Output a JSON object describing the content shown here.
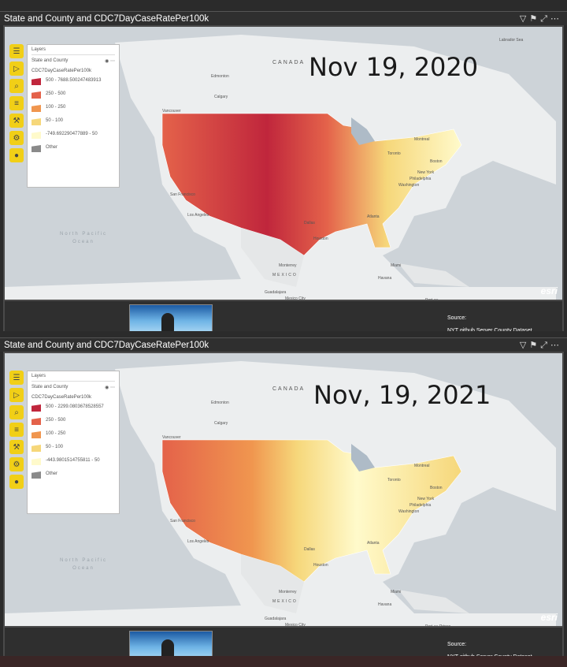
{
  "panels": [
    {
      "title": "State and County and CDC7DayCaseRatePer100k",
      "date": "Nov 19, 2020",
      "layers_header": "Layers",
      "layer_name": "State and County",
      "field_name": "CDC7DayCaseRatePer100k",
      "legend": [
        {
          "label": "500 - 7688.500247483913",
          "color": "#c0263c"
        },
        {
          "label": "250 - 500",
          "color": "#e4624a"
        },
        {
          "label": "100 - 250",
          "color": "#f0964f"
        },
        {
          "label": "50 - 100",
          "color": "#f6d77a"
        },
        {
          "label": "-749.692290477889 - 50",
          "color": "#fffacb"
        },
        {
          "label": "Other",
          "color": "#8a8a8a"
        }
      ],
      "places": {
        "edmonton": "Edmonton",
        "calgary": "Calgary",
        "vancouver": "Vancouver",
        "canada": "CANADA",
        "montreal": "Montreal",
        "toronto": "Toronto",
        "boston": "Boston",
        "new_york": "New York",
        "philadelphia": "Philadelphia",
        "washington": "Washington",
        "atlanta": "Atlanta",
        "san_francisco": "San Francisco",
        "los_angeles": "Los Angeles",
        "dallas": "Dallas",
        "houston": "Houston",
        "monterrey": "Monterrey",
        "mexico": "MEXICO",
        "guadalajara": "Guadalajara",
        "mexico_city": "Mexico City",
        "havana": "Havana",
        "miami": "Miami",
        "port_au": "Port-au-",
        "labrador": "Labrador Sea"
      },
      "ocean": "North Pacific Ocean",
      "esri": "esri",
      "source_label": "Source:",
      "source_value": "NYT github Server County Dataset"
    },
    {
      "title": "State and County and CDC7DayCaseRatePer100k",
      "date": "Nov, 19, 2021",
      "layers_header": "Layers",
      "layer_name": "State and County",
      "field_name": "CDC7DayCaseRatePer100k",
      "legend": [
        {
          "label": "500 - 2299.0803678528557",
          "color": "#c0263c"
        },
        {
          "label": "250 - 500",
          "color": "#e4624a"
        },
        {
          "label": "100 - 250",
          "color": "#f0964f"
        },
        {
          "label": "50 - 100",
          "color": "#f6d77a"
        },
        {
          "label": "-443.9801514755811 - 50",
          "color": "#fffacb"
        },
        {
          "label": "Other",
          "color": "#8a8a8a"
        }
      ],
      "places": {
        "edmonton": "Edmonton",
        "calgary": "Calgary",
        "vancouver": "Vancouver",
        "canada": "CANADA",
        "montreal": "Montreal",
        "toronto": "Toronto",
        "boston": "Boston",
        "new_york": "New York",
        "philadelphia": "Philadelphia",
        "washington": "Washington",
        "atlanta": "Atlanta",
        "san_francisco": "San Francisco",
        "los_angeles": "Los Angeles",
        "dallas": "Dallas",
        "houston": "Houston",
        "monterrey": "Monterrey",
        "mexico": "MEXICO",
        "guadalajara": "Guadalajara",
        "mexico_city": "Mexico City",
        "havana": "Havana",
        "miami": "Miami",
        "port_au": "Port-au-Prince",
        "labrador": ""
      },
      "ocean": "North Pacific Ocean",
      "esri": "esri",
      "source_label": "Source:",
      "source_value": "NYT github Server County Dataset"
    }
  ],
  "icons": [
    "menu-icon",
    "select-icon",
    "search-icon",
    "layers-icon",
    "tools-icon",
    "settings-icon",
    "user-icon",
    "filter-icon",
    "focus-icon",
    "expand-icon",
    "more-icon"
  ]
}
